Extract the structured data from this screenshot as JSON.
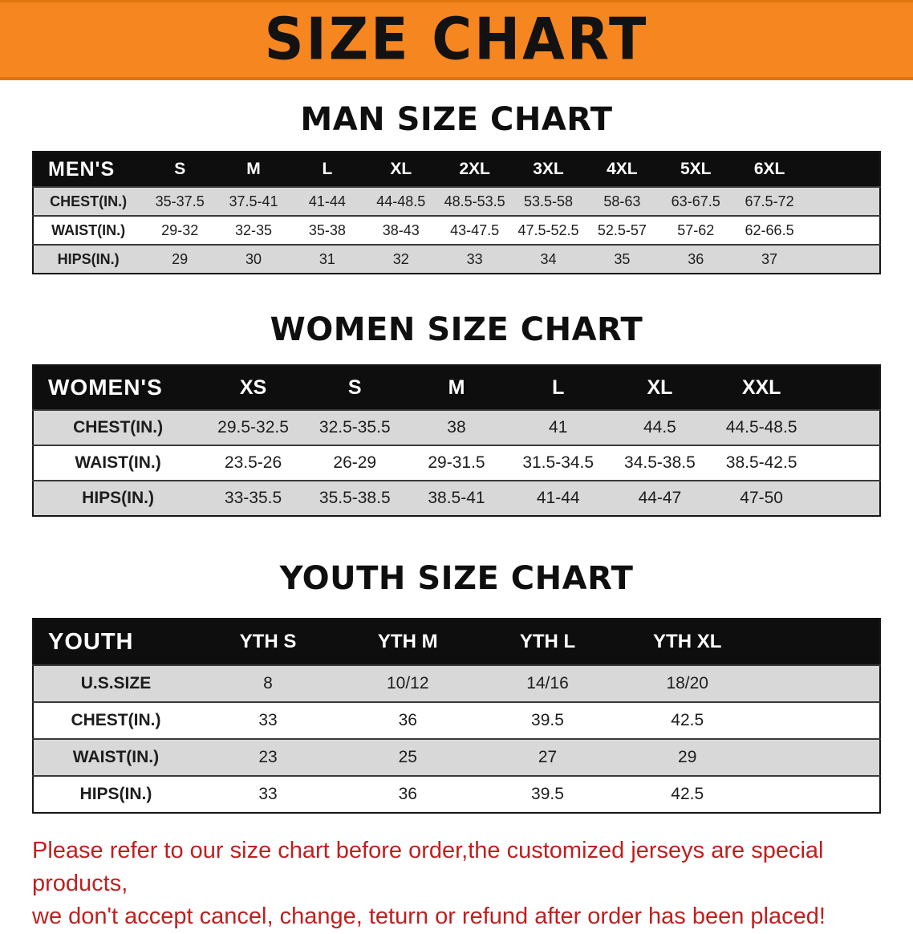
{
  "banner": {
    "title": "SIZE CHART"
  },
  "colors": {
    "banner_bg": "#f6861f",
    "table_header_bg": "#0e0e0e",
    "row_shade": "#d8d8d8",
    "disclaimer_text": "#c01f1f"
  },
  "men": {
    "heading": "MAN SIZE CHART",
    "label": "MEN'S",
    "sizes": [
      "S",
      "M",
      "L",
      "XL",
      "2XL",
      "3XL",
      "4XL",
      "5XL",
      "6XL"
    ],
    "rows": [
      {
        "label": "CHEST(IN.)",
        "values": [
          "35-37.5",
          "37.5-41",
          "41-44",
          "44-48.5",
          "48.5-53.5",
          "53.5-58",
          "58-63",
          "63-67.5",
          "67.5-72"
        ]
      },
      {
        "label": "WAIST(IN.)",
        "values": [
          "29-32",
          "32-35",
          "35-38",
          "38-43",
          "43-47.5",
          "47.5-52.5",
          "52.5-57",
          "57-62",
          "62-66.5"
        ]
      },
      {
        "label": "HIPS(IN.)",
        "values": [
          "29",
          "30",
          "31",
          "32",
          "33",
          "34",
          "35",
          "36",
          "37"
        ]
      }
    ]
  },
  "women": {
    "heading": "WOMEN SIZE CHART",
    "label": "WOMEN'S",
    "sizes": [
      "XS",
      "S",
      "M",
      "L",
      "XL",
      "XXL"
    ],
    "rows": [
      {
        "label": "CHEST(IN.)",
        "values": [
          "29.5-32.5",
          "32.5-35.5",
          "38",
          "41",
          "44.5",
          "44.5-48.5"
        ]
      },
      {
        "label": "WAIST(IN.)",
        "values": [
          "23.5-26",
          "26-29",
          "29-31.5",
          "31.5-34.5",
          "34.5-38.5",
          "38.5-42.5"
        ]
      },
      {
        "label": "HIPS(IN.)",
        "values": [
          "33-35.5",
          "35.5-38.5",
          "38.5-41",
          "41-44",
          "44-47",
          "47-50"
        ]
      }
    ]
  },
  "youth": {
    "heading": "YOUTH SIZE CHART",
    "label": "YOUTH",
    "sizes": [
      "YTH S",
      "YTH M",
      "YTH L",
      "YTH XL"
    ],
    "rows": [
      {
        "label": "U.S.SIZE",
        "values": [
          "8",
          "10/12",
          "14/16",
          "18/20"
        ]
      },
      {
        "label": "CHEST(IN.)",
        "values": [
          "33",
          "36",
          "39.5",
          "42.5"
        ]
      },
      {
        "label": "WAIST(IN.)",
        "values": [
          "23",
          "25",
          "27",
          "29"
        ]
      },
      {
        "label": "HIPS(IN.)",
        "values": [
          "33",
          "36",
          "39.5",
          "42.5"
        ]
      }
    ]
  },
  "disclaimer": {
    "line1": "Please refer to our size chart before order,the customized jerseys are special products,",
    "line2": "we don't accept cancel, change, teturn or refund after order has been placed!"
  }
}
